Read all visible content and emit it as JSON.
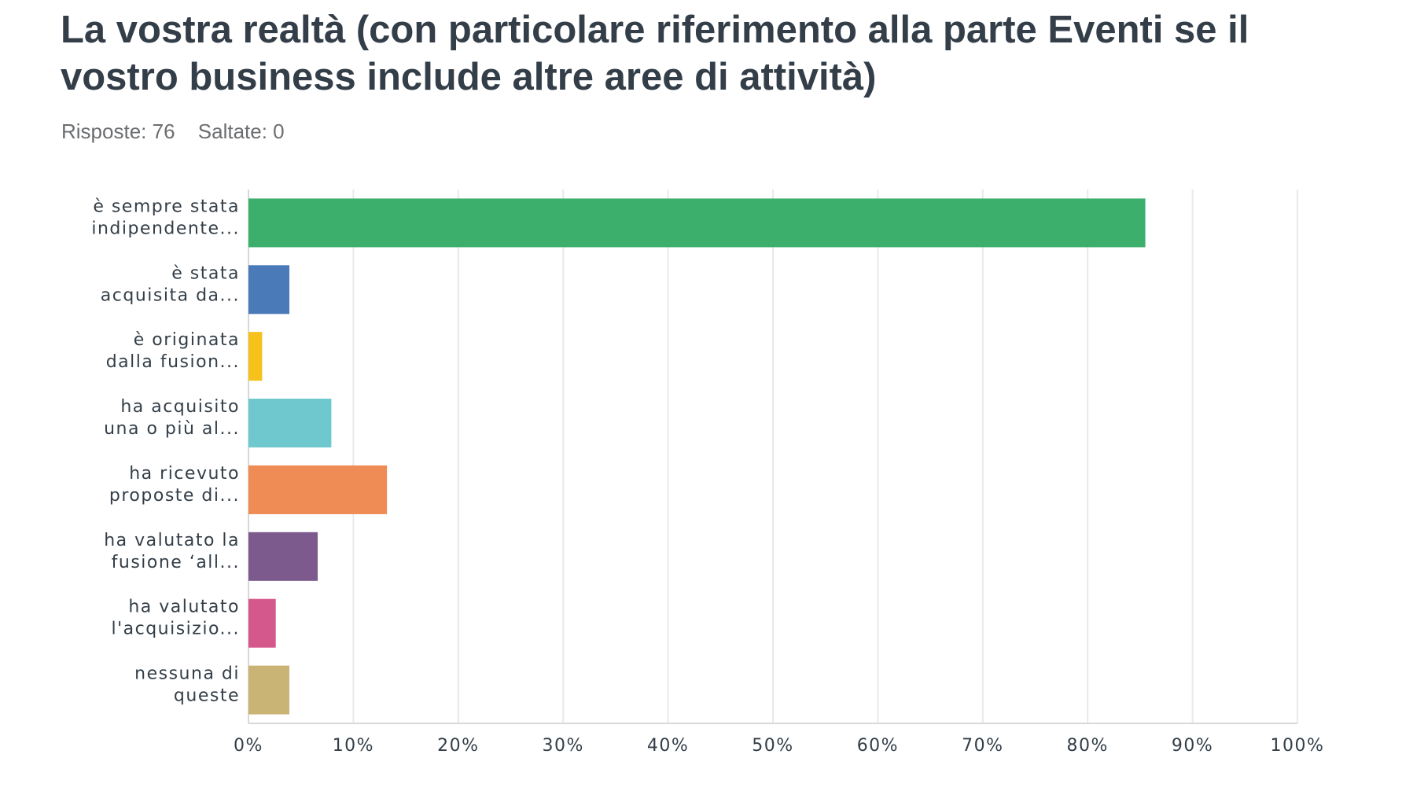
{
  "header": {
    "title": "La vostra realtà (con particolare riferimento alla parte Eventi se il vostro business include altre aree di attività)",
    "answered": "Risposte: 76",
    "skipped": "Saltate: 0"
  },
  "chart_data": {
    "type": "bar",
    "orientation": "horizontal",
    "categories": [
      [
        "è sempre stata",
        "indipendente..."
      ],
      [
        "è stata",
        "acquisita da..."
      ],
      [
        "è originata",
        "dalla fusion..."
      ],
      [
        "ha acquisito",
        "una o più al..."
      ],
      [
        "ha ricevuto",
        "proposte di..."
      ],
      [
        "ha valutato la",
        "fusione ‘all..."
      ],
      [
        "ha valutato",
        "l'acquisizio..."
      ],
      [
        "nessuna di",
        "queste"
      ]
    ],
    "values": [
      85.5,
      3.9,
      1.3,
      7.9,
      13.2,
      6.6,
      2.6,
      3.9
    ],
    "colors": [
      "#3daf6c",
      "#4a7ab8",
      "#f5c11a",
      "#6ec8cd",
      "#ef8b55",
      "#7d5a8e",
      "#d4588c",
      "#c9b375"
    ],
    "xlim": [
      0,
      100
    ],
    "xticks": [
      "0%",
      "10%",
      "20%",
      "30%",
      "40%",
      "50%",
      "60%",
      "70%",
      "80%",
      "90%",
      "100%"
    ],
    "grid": true
  }
}
